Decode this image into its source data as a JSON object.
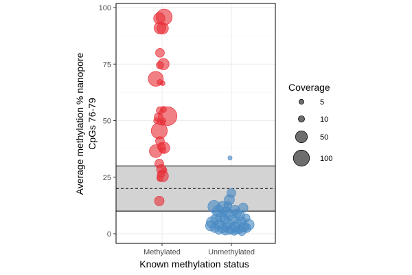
{
  "chart_data": {
    "type": "scatter",
    "xlabel": "Known methylation status",
    "ylabel_lines": [
      "Average methylation % nanopore",
      "CpGs 76-79"
    ],
    "categories": [
      "Methylated",
      "Unmethylated"
    ],
    "ylim": [
      0,
      100
    ],
    "yticks": [
      0,
      25,
      50,
      75,
      100
    ],
    "grid": true,
    "shaded_band": {
      "ymin": 10,
      "ymax": 30,
      "color": "#d3d3d3"
    },
    "reference_line": {
      "y": 20,
      "style": "dashed"
    },
    "colors": {
      "Methylated": "#e8323a",
      "Unmethylated": "#4a8bc4"
    },
    "legend": {
      "title": "Coverage",
      "position": "right",
      "entries": [
        {
          "label": "5",
          "coverage": 5
        },
        {
          "label": "10",
          "coverage": 10
        },
        {
          "label": "50",
          "coverage": 50
        },
        {
          "label": "100",
          "coverage": 100
        }
      ]
    },
    "series": [
      {
        "group": "Methylated",
        "points": [
          {
            "x": 0.03,
            "y": 95.8,
            "coverage": 100
          },
          {
            "x": -0.04,
            "y": 95.2,
            "coverage": 45
          },
          {
            "x": -0.03,
            "y": 91.0,
            "coverage": 50
          },
          {
            "x": 0.01,
            "y": 90.8,
            "coverage": 45
          },
          {
            "x": -0.03,
            "y": 80.0,
            "coverage": 25
          },
          {
            "x": -0.03,
            "y": 74.5,
            "coverage": 15
          },
          {
            "x": 0.02,
            "y": 75.0,
            "coverage": 45
          },
          {
            "x": -0.09,
            "y": 68.5,
            "coverage": 85
          },
          {
            "x": -0.03,
            "y": 67.0,
            "coverage": 8
          },
          {
            "x": 0.01,
            "y": 66.5,
            "coverage": 4
          },
          {
            "x": -0.03,
            "y": 54.5,
            "coverage": 15
          },
          {
            "x": 0.02,
            "y": 55.0,
            "coverage": 10
          },
          {
            "x": 0.08,
            "y": 52.0,
            "coverage": 140
          },
          {
            "x": -0.05,
            "y": 51.5,
            "coverage": 25
          },
          {
            "x": -0.08,
            "y": 50.0,
            "coverage": 8
          },
          {
            "x": 0.02,
            "y": 50.0,
            "coverage": 5
          },
          {
            "x": -0.03,
            "y": 49.5,
            "coverage": 10
          },
          {
            "x": 0.01,
            "y": 49.0,
            "coverage": 5
          },
          {
            "x": -0.04,
            "y": 45.5,
            "coverage": 100
          },
          {
            "x": -0.03,
            "y": 41.0,
            "coverage": 25
          },
          {
            "x": -0.01,
            "y": 38.5,
            "coverage": 20
          },
          {
            "x": 0.03,
            "y": 38.0,
            "coverage": 45
          },
          {
            "x": -0.09,
            "y": 36.5,
            "coverage": 60
          },
          {
            "x": 0.01,
            "y": 37.0,
            "coverage": 10
          },
          {
            "x": -0.04,
            "y": 31.0,
            "coverage": 25
          },
          {
            "x": -0.01,
            "y": 28.5,
            "coverage": 30
          },
          {
            "x": 0.03,
            "y": 28.0,
            "coverage": 8
          },
          {
            "x": -0.01,
            "y": 26.5,
            "coverage": 15
          },
          {
            "x": 0.01,
            "y": 25.5,
            "coverage": 45
          },
          {
            "x": -0.03,
            "y": 24.5,
            "coverage": 10
          },
          {
            "x": -0.04,
            "y": 14.5,
            "coverage": 30
          }
        ]
      },
      {
        "group": "Unmethylated",
        "points": [
          {
            "x": -0.02,
            "y": 33.5,
            "coverage": 3
          },
          {
            "x": 0.0,
            "y": 18.0,
            "coverage": 25
          },
          {
            "x": -0.03,
            "y": 15.0,
            "coverage": 35
          },
          {
            "x": -0.25,
            "y": 12.0,
            "coverage": 55
          },
          {
            "x": -0.12,
            "y": 11.5,
            "coverage": 60
          },
          {
            "x": 0.17,
            "y": 11.5,
            "coverage": 30
          },
          {
            "x": -0.05,
            "y": 12.5,
            "coverage": 20
          },
          {
            "x": 0.05,
            "y": 10.5,
            "coverage": 30
          },
          {
            "x": -0.19,
            "y": 10.0,
            "coverage": 50
          },
          {
            "x": -0.08,
            "y": 9.5,
            "coverage": 40
          },
          {
            "x": 0.08,
            "y": 9.0,
            "coverage": 25
          },
          {
            "x": 0.12,
            "y": 8.0,
            "coverage": 30
          },
          {
            "x": -0.15,
            "y": 7.5,
            "coverage": 35
          },
          {
            "x": -0.02,
            "y": 8.5,
            "coverage": 40
          },
          {
            "x": 0.21,
            "y": 7.0,
            "coverage": 20
          },
          {
            "x": -0.22,
            "y": 6.5,
            "coverage": 40
          },
          {
            "x": -0.1,
            "y": 6.5,
            "coverage": 25
          },
          {
            "x": 0.02,
            "y": 6.0,
            "coverage": 30
          },
          {
            "x": 0.15,
            "y": 5.5,
            "coverage": 25
          },
          {
            "x": -0.28,
            "y": 5.0,
            "coverage": 45
          },
          {
            "x": -0.05,
            "y": 4.5,
            "coverage": 35
          },
          {
            "x": 0.09,
            "y": 4.5,
            "coverage": 30
          },
          {
            "x": 0.25,
            "y": 4.0,
            "coverage": 40
          },
          {
            "x": -0.18,
            "y": 4.0,
            "coverage": 30
          },
          {
            "x": -0.3,
            "y": 3.5,
            "coverage": 35
          },
          {
            "x": -0.08,
            "y": 3.0,
            "coverage": 25
          },
          {
            "x": 0.05,
            "y": 3.0,
            "coverage": 30
          },
          {
            "x": 0.18,
            "y": 3.0,
            "coverage": 35
          },
          {
            "x": -0.24,
            "y": 2.5,
            "coverage": 25
          },
          {
            "x": -0.13,
            "y": 2.5,
            "coverage": 30
          },
          {
            "x": 0.0,
            "y": 2.0,
            "coverage": 25
          },
          {
            "x": 0.12,
            "y": 2.0,
            "coverage": 20
          },
          {
            "x": 0.22,
            "y": 2.5,
            "coverage": 25
          },
          {
            "x": -0.03,
            "y": 1.5,
            "coverage": 20
          },
          {
            "x": 0.08,
            "y": 1.5,
            "coverage": 15
          },
          {
            "x": -0.18,
            "y": 1.5,
            "coverage": 20
          },
          {
            "x": 0.15,
            "y": 1.0,
            "coverage": 20
          },
          {
            "x": -0.09,
            "y": 1.0,
            "coverage": 15
          },
          {
            "x": 0.04,
            "y": 0.8,
            "coverage": 12
          }
        ]
      }
    ]
  }
}
